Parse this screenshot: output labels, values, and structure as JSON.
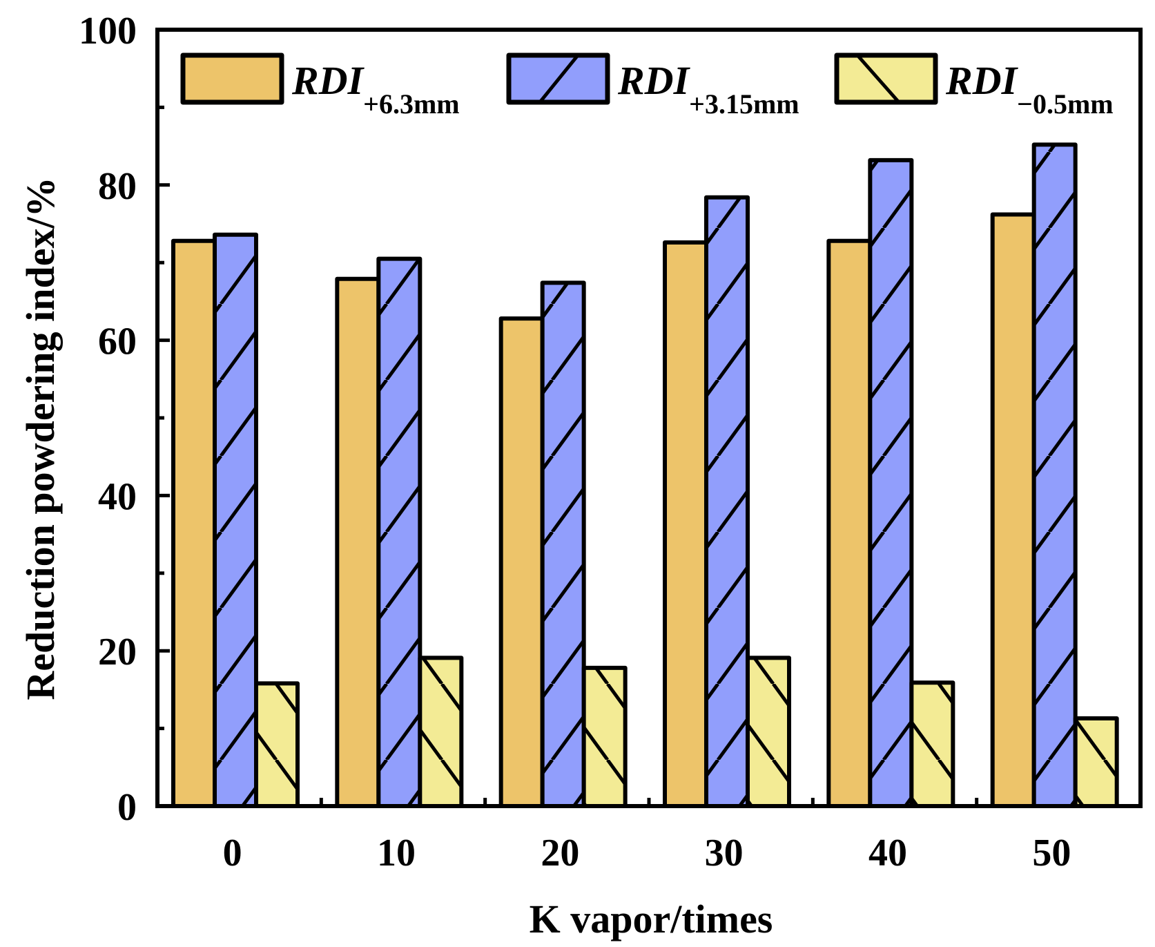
{
  "chart_data": {
    "type": "bar",
    "xlabel": "K vapor/times",
    "ylabel": "Reduction powdering index/%",
    "ylim": [
      0,
      100
    ],
    "yticks": [
      "0",
      "20",
      "40",
      "60",
      "80",
      "100"
    ],
    "categories": [
      "0",
      "10",
      "20",
      "30",
      "40",
      "50"
    ],
    "legend_position": "top",
    "grid": false,
    "series": [
      {
        "name_main": "RDI",
        "name_sub": "+6.3mm",
        "color": "#EDC46A",
        "hatch": "none",
        "values": [
          72.8,
          67.9,
          62.8,
          72.6,
          72.8,
          76.2
        ]
      },
      {
        "name_main": "RDI",
        "name_sub": "+3.15mm",
        "color": "#919EFC",
        "hatch": "forward",
        "values": [
          73.6,
          70.5,
          67.4,
          78.4,
          83.2,
          85.2
        ]
      },
      {
        "name_main": "RDI",
        "name_sub": "−0.5mm",
        "color": "#F3EB95",
        "hatch": "back",
        "values": [
          15.8,
          19.1,
          17.8,
          19.1,
          15.9,
          11.3
        ]
      }
    ]
  }
}
